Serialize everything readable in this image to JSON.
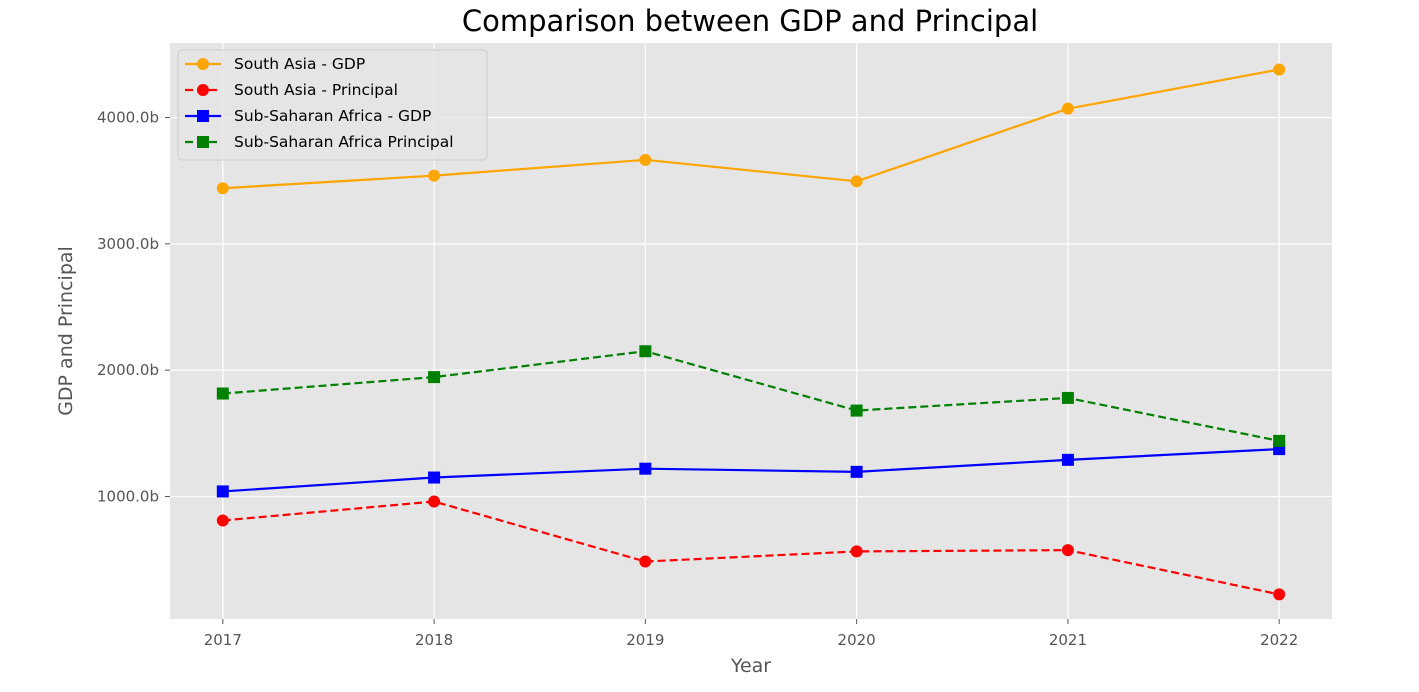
{
  "chart_data": {
    "type": "line",
    "title": "Comparison between GDP and Principal",
    "xlabel": "Year",
    "ylabel": "GDP and Principal",
    "x": [
      "2017",
      "2018",
      "2019",
      "2020",
      "2021",
      "2022"
    ],
    "xlim": [
      2016.75,
      2022.25
    ],
    "ylim": [
      30,
      4590
    ],
    "y_ticks": [
      1000,
      2000,
      3000,
      4000
    ],
    "y_tick_labels": [
      "1000.0b",
      "2000.0b",
      "3000.0b",
      "4000.0b"
    ],
    "grid": true,
    "style": "ggplot",
    "legend_position": "upper-left",
    "series": [
      {
        "name": "South Asia - GDP",
        "values": [
          3440,
          3540,
          3665,
          3495,
          4070,
          4380
        ],
        "color": "#ffa500",
        "marker": "circle",
        "linestyle": "solid"
      },
      {
        "name": "South Asia - Principal",
        "values": [
          810,
          960,
          485,
          565,
          575,
          225
        ],
        "color": "#ff0000",
        "marker": "circle",
        "linestyle": "dashed"
      },
      {
        "name": "Sub-Saharan Africa - GDP",
        "values": [
          1040,
          1150,
          1220,
          1195,
          1290,
          1375
        ],
        "color": "#0000ff",
        "marker": "square",
        "linestyle": "solid"
      },
      {
        "name": "Sub-Saharan Africa Principal",
        "values": [
          1815,
          1945,
          2150,
          1680,
          1780,
          1440
        ],
        "color": "#008000",
        "marker": "square",
        "linestyle": "dashed"
      }
    ]
  }
}
